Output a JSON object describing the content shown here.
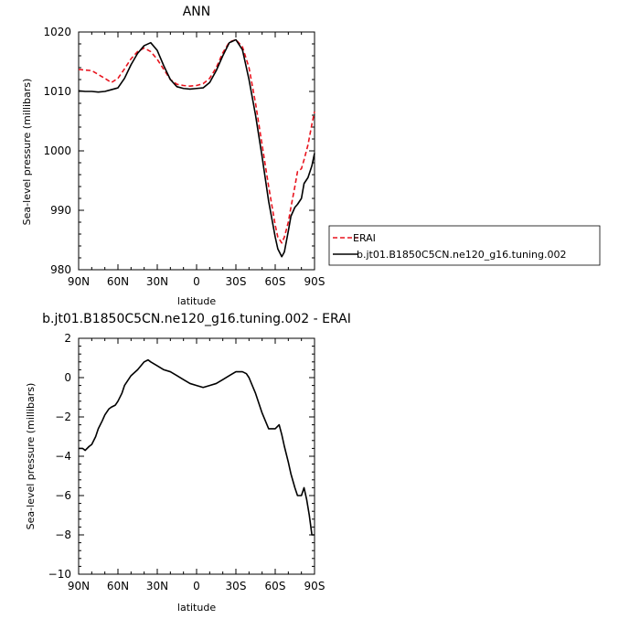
{
  "chart_data": [
    {
      "type": "line",
      "title": "ANN",
      "xlabel": "latitude",
      "ylabel": "Sea-level pressure (millibars)",
      "xlim": [
        90,
        -90
      ],
      "ylim": [
        980,
        1020
      ],
      "x_ticks": [
        90,
        60,
        30,
        0,
        -30,
        -60,
        -90
      ],
      "x_tick_labels": [
        "90N",
        "60N",
        "30N",
        "0",
        "30S",
        "60S",
        "90S"
      ],
      "y_ticks": [
        980,
        990,
        1000,
        1010,
        1020
      ],
      "y_tick_labels": [
        "980",
        "990",
        "1000",
        "1010",
        "1020"
      ],
      "legend_position": "right",
      "series": [
        {
          "name": "ERAI",
          "color": "#e8141e",
          "style": "dashed",
          "x": [
            90,
            80,
            70,
            65,
            60,
            55,
            50,
            45,
            40,
            35,
            30,
            25,
            20,
            15,
            10,
            5,
            0,
            -5,
            -10,
            -15,
            -20,
            -25,
            -30,
            -35,
            -40,
            -45,
            -50,
            -55,
            -60,
            -62,
            -65,
            -67,
            -70,
            -72,
            -75,
            -77,
            -80,
            -82,
            -85,
            -88,
            -90
          ],
          "y": [
            1013.7,
            1013.5,
            1012.2,
            1011.5,
            1012.2,
            1013.8,
            1015.5,
            1016.7,
            1017.3,
            1016.7,
            1015.4,
            1013.7,
            1012.0,
            1011.2,
            1011.0,
            1010.9,
            1011.0,
            1011.3,
            1012.2,
            1014.0,
            1016.5,
            1018.3,
            1018.7,
            1017.5,
            1014.0,
            1008.0,
            1001.0,
            994.0,
            987.5,
            985.5,
            984.5,
            985.5,
            988.0,
            990.5,
            994.0,
            996.5,
            997.0,
            998.5,
            1001.0,
            1004.5,
            1006.6
          ]
        },
        {
          "name": "b.jt01.B1850C5CN.ne120_g16.tuning.002",
          "color": "#000000",
          "style": "solid",
          "x": [
            90,
            85,
            80,
            75,
            70,
            65,
            60,
            55,
            50,
            45,
            40,
            35,
            30,
            25,
            20,
            15,
            10,
            5,
            0,
            -5,
            -10,
            -15,
            -20,
            -25,
            -30,
            -35,
            -40,
            -45,
            -50,
            -55,
            -60,
            -62,
            -65,
            -67,
            -70,
            -72,
            -75,
            -77,
            -80,
            -82,
            -85,
            -88,
            -90
          ],
          "y": [
            1010.1,
            1010.0,
            1010.0,
            1009.9,
            1010.0,
            1010.3,
            1010.6,
            1012.2,
            1014.5,
            1016.4,
            1017.7,
            1018.2,
            1016.9,
            1014.3,
            1012.0,
            1010.8,
            1010.5,
            1010.4,
            1010.5,
            1010.6,
            1011.5,
            1013.5,
            1016.0,
            1018.2,
            1018.7,
            1017.0,
            1012.0,
            1006.0,
            999.0,
            991.5,
            985.5,
            983.5,
            982.2,
            983.0,
            986.5,
            989.0,
            990.5,
            991.0,
            992.0,
            994.5,
            995.5,
            997.5,
            999.6
          ]
        }
      ]
    },
    {
      "type": "line",
      "title": "b.jt01.B1850C5CN.ne120_g16.tuning.002  -  ERAI",
      "xlabel": "latitude",
      "ylabel": "Sea-level pressure (millibars)",
      "xlim": [
        90,
        -90
      ],
      "ylim": [
        -10,
        2
      ],
      "x_ticks": [
        90,
        60,
        30,
        0,
        -30,
        -60,
        -90
      ],
      "x_tick_labels": [
        "90N",
        "60N",
        "30N",
        "0",
        "30S",
        "60S",
        "90S"
      ],
      "y_ticks": [
        -10,
        -8,
        -6,
        -4,
        -2,
        0,
        2
      ],
      "y_tick_labels": [
        "−10",
        "−8",
        "−6",
        "−4",
        "−2",
        "0",
        "2"
      ],
      "series": [
        {
          "name": "",
          "color": "#000000",
          "style": "solid",
          "x": [
            90,
            87,
            85,
            82,
            80,
            77,
            75,
            72,
            70,
            67,
            65,
            62,
            60,
            57,
            55,
            50,
            45,
            40,
            37,
            35,
            30,
            25,
            20,
            15,
            10,
            5,
            0,
            -5,
            -10,
            -15,
            -20,
            -25,
            -30,
            -35,
            -38,
            -40,
            -45,
            -50,
            -55,
            -60,
            -63,
            -65,
            -67,
            -70,
            -72,
            -75,
            -77,
            -80,
            -82,
            -84,
            -86,
            -88,
            -90
          ],
          "y": [
            -3.6,
            -3.6,
            -3.7,
            -3.5,
            -3.4,
            -3.0,
            -2.6,
            -2.2,
            -1.9,
            -1.6,
            -1.5,
            -1.4,
            -1.2,
            -0.8,
            -0.4,
            0.1,
            0.4,
            0.8,
            0.9,
            0.8,
            0.6,
            0.4,
            0.3,
            0.1,
            -0.1,
            -0.3,
            -0.4,
            -0.5,
            -0.4,
            -0.3,
            -0.1,
            0.1,
            0.3,
            0.3,
            0.2,
            0.0,
            -0.8,
            -1.8,
            -2.6,
            -2.6,
            -2.4,
            -2.9,
            -3.5,
            -4.3,
            -4.9,
            -5.6,
            -6.0,
            -6.0,
            -5.6,
            -6.2,
            -7.0,
            -8.0,
            -8.0
          ]
        }
      ]
    }
  ]
}
